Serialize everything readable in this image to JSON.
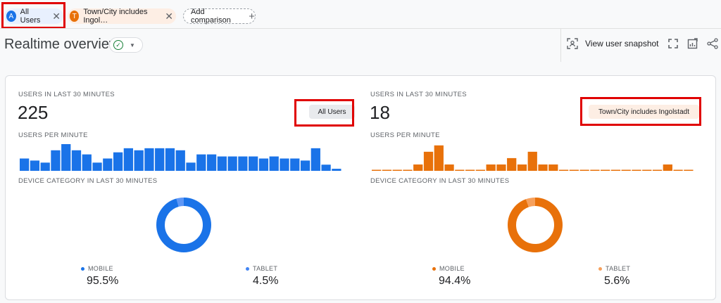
{
  "comparisons": {
    "chip_all": {
      "avatar": "A",
      "label": "All Users"
    },
    "chip_town": {
      "avatar": "T",
      "label": "Town/City includes Ingol…"
    },
    "add_label": "Add comparison"
  },
  "header": {
    "title": "Realtime overview",
    "snapshot_label": "View user snapshot"
  },
  "colors": {
    "blue": "#1a73e8",
    "orange": "#e8710a"
  },
  "panels": [
    {
      "users_label": "USERS IN LAST 30 MINUTES",
      "users_count": "225",
      "segment": "All Users",
      "per_minute_label": "USERS PER MINUTE",
      "device_label": "DEVICE CATEGORY IN LAST 30 MINUTES",
      "devices": [
        {
          "name": "MOBILE",
          "percent": "95.5%"
        },
        {
          "name": "TABLET",
          "percent": "4.5%"
        }
      ]
    },
    {
      "users_label": "USERS IN LAST 30 MINUTES",
      "users_count": "18",
      "segment": "Town/City includes Ingolstadt",
      "per_minute_label": "USERS PER MINUTE",
      "device_label": "DEVICE CATEGORY IN LAST 30 MINUTES",
      "devices": [
        {
          "name": "MOBILE",
          "percent": "94.4%"
        },
        {
          "name": "TABLET",
          "percent": "5.6%"
        }
      ]
    }
  ],
  "chart_data": [
    {
      "type": "bar",
      "series": [
        {
          "values": [
            6,
            5,
            4,
            10,
            13,
            10,
            8,
            4,
            6,
            9,
            11,
            10,
            11,
            11,
            11,
            10,
            4,
            8,
            8,
            7,
            7,
            7,
            7,
            6,
            7,
            6,
            6,
            5,
            11,
            3,
            1
          ]
        }
      ]
    },
    {
      "type": "bar",
      "series": [
        {
          "values": [
            0,
            0,
            0,
            0,
            1,
            3,
            4,
            1,
            0,
            0,
            0,
            1,
            1,
            2,
            1,
            3,
            1,
            1,
            0,
            0,
            0,
            0,
            0,
            0,
            0,
            0,
            0,
            0,
            1,
            0,
            0
          ]
        }
      ]
    },
    {
      "type": "pie",
      "categories": [
        "MOBILE",
        "TABLET"
      ],
      "values": [
        95.5,
        4.5
      ]
    },
    {
      "type": "pie",
      "categories": [
        "MOBILE",
        "TABLET"
      ],
      "values": [
        94.4,
        5.6
      ]
    }
  ]
}
